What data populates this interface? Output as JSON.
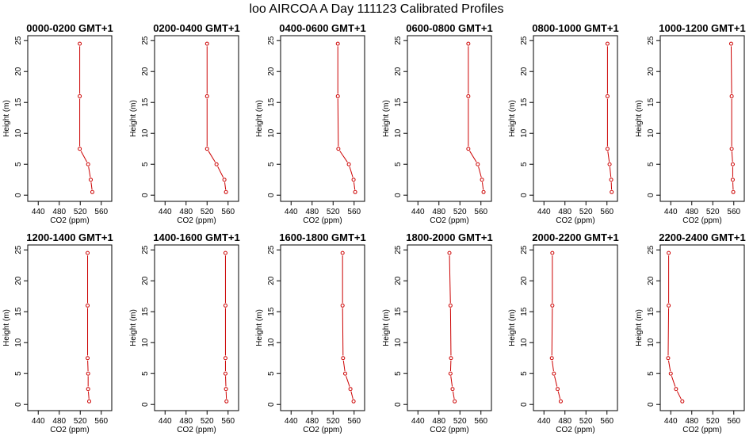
{
  "title": "loo AIRCOA A  Day 111123  Calibrated Profiles",
  "chart_data": {
    "type": "line",
    "layout": {
      "rows": 2,
      "cols": 6
    },
    "xlabel": "CO2 (ppm)",
    "ylabel": "Height (m)",
    "xlim": [
      420,
      580
    ],
    "ylim": [
      -1,
      25.8
    ],
    "xticks": [
      440,
      480,
      520,
      560
    ],
    "yticks": [
      0,
      5,
      10,
      15,
      20,
      25
    ],
    "series_color": "#cc0000",
    "marker": "open-circle",
    "panels": [
      {
        "title": "0000-0200 GMT+1",
        "points": [
          {
            "x": 543,
            "y": 0.5
          },
          {
            "x": 540,
            "y": 2.5
          },
          {
            "x": 535,
            "y": 5
          },
          {
            "x": 519,
            "y": 7.5
          },
          {
            "x": 519,
            "y": 16
          },
          {
            "x": 519,
            "y": 24.5
          }
        ]
      },
      {
        "title": "0200-0400 GMT+1",
        "points": [
          {
            "x": 556,
            "y": 0.5
          },
          {
            "x": 553,
            "y": 2.5
          },
          {
            "x": 538,
            "y": 5
          },
          {
            "x": 520,
            "y": 7.5
          },
          {
            "x": 520,
            "y": 16
          },
          {
            "x": 520,
            "y": 24.5
          }
        ]
      },
      {
        "title": "0400-0600 GMT+1",
        "points": [
          {
            "x": 562,
            "y": 0.5
          },
          {
            "x": 559,
            "y": 2.5
          },
          {
            "x": 550,
            "y": 5
          },
          {
            "x": 530,
            "y": 7.5
          },
          {
            "x": 529,
            "y": 16
          },
          {
            "x": 529,
            "y": 24.5
          }
        ]
      },
      {
        "title": "0600-0800 GMT+1",
        "points": [
          {
            "x": 565,
            "y": 0.5
          },
          {
            "x": 562,
            "y": 2.5
          },
          {
            "x": 554,
            "y": 5
          },
          {
            "x": 536,
            "y": 7.5
          },
          {
            "x": 536,
            "y": 16
          },
          {
            "x": 536,
            "y": 24.5
          }
        ]
      },
      {
        "title": "0800-1000 GMT+1",
        "points": [
          {
            "x": 569,
            "y": 0.5
          },
          {
            "x": 568,
            "y": 2.5
          },
          {
            "x": 565,
            "y": 5
          },
          {
            "x": 561,
            "y": 7.5
          },
          {
            "x": 561,
            "y": 16
          },
          {
            "x": 561,
            "y": 24.5
          }
        ]
      },
      {
        "title": "1000-1200 GMT+1",
        "points": [
          {
            "x": 559,
            "y": 0.5
          },
          {
            "x": 558,
            "y": 2.5
          },
          {
            "x": 558,
            "y": 5
          },
          {
            "x": 556,
            "y": 7.5
          },
          {
            "x": 556,
            "y": 16
          },
          {
            "x": 555,
            "y": 24.5
          }
        ]
      },
      {
        "title": "1200-1400 GMT+1",
        "points": [
          {
            "x": 537,
            "y": 0.5
          },
          {
            "x": 535,
            "y": 2.5
          },
          {
            "x": 535,
            "y": 5
          },
          {
            "x": 534,
            "y": 7.5
          },
          {
            "x": 534,
            "y": 16
          },
          {
            "x": 534,
            "y": 24.5
          }
        ]
      },
      {
        "title": "1400-1600 GMT+1",
        "points": [
          {
            "x": 557,
            "y": 0.5
          },
          {
            "x": 556,
            "y": 2.5
          },
          {
            "x": 555,
            "y": 5
          },
          {
            "x": 555,
            "y": 7.5
          },
          {
            "x": 555,
            "y": 16
          },
          {
            "x": 555,
            "y": 24.5
          }
        ]
      },
      {
        "title": "1600-1800 GMT+1",
        "points": [
          {
            "x": 559,
            "y": 0.5
          },
          {
            "x": 553,
            "y": 2.5
          },
          {
            "x": 543,
            "y": 5
          },
          {
            "x": 539,
            "y": 7.5
          },
          {
            "x": 538,
            "y": 16
          },
          {
            "x": 538,
            "y": 24.5
          }
        ]
      },
      {
        "title": "1800-2000 GMT+1",
        "points": [
          {
            "x": 510,
            "y": 0.5
          },
          {
            "x": 506,
            "y": 2.5
          },
          {
            "x": 502,
            "y": 5
          },
          {
            "x": 503,
            "y": 7.5
          },
          {
            "x": 502,
            "y": 16
          },
          {
            "x": 500,
            "y": 24.5
          }
        ]
      },
      {
        "title": "2000-2200 GMT+1",
        "points": [
          {
            "x": 472,
            "y": 0.5
          },
          {
            "x": 466,
            "y": 2.5
          },
          {
            "x": 459,
            "y": 5
          },
          {
            "x": 455,
            "y": 7.5
          },
          {
            "x": 456,
            "y": 16
          },
          {
            "x": 456,
            "y": 24.5
          }
        ]
      },
      {
        "title": "2200-2400 GMT+1",
        "points": [
          {
            "x": 462,
            "y": 0.5
          },
          {
            "x": 450,
            "y": 2.5
          },
          {
            "x": 440,
            "y": 5
          },
          {
            "x": 435,
            "y": 7.5
          },
          {
            "x": 436,
            "y": 16
          },
          {
            "x": 436,
            "y": 24.5
          }
        ]
      }
    ]
  }
}
